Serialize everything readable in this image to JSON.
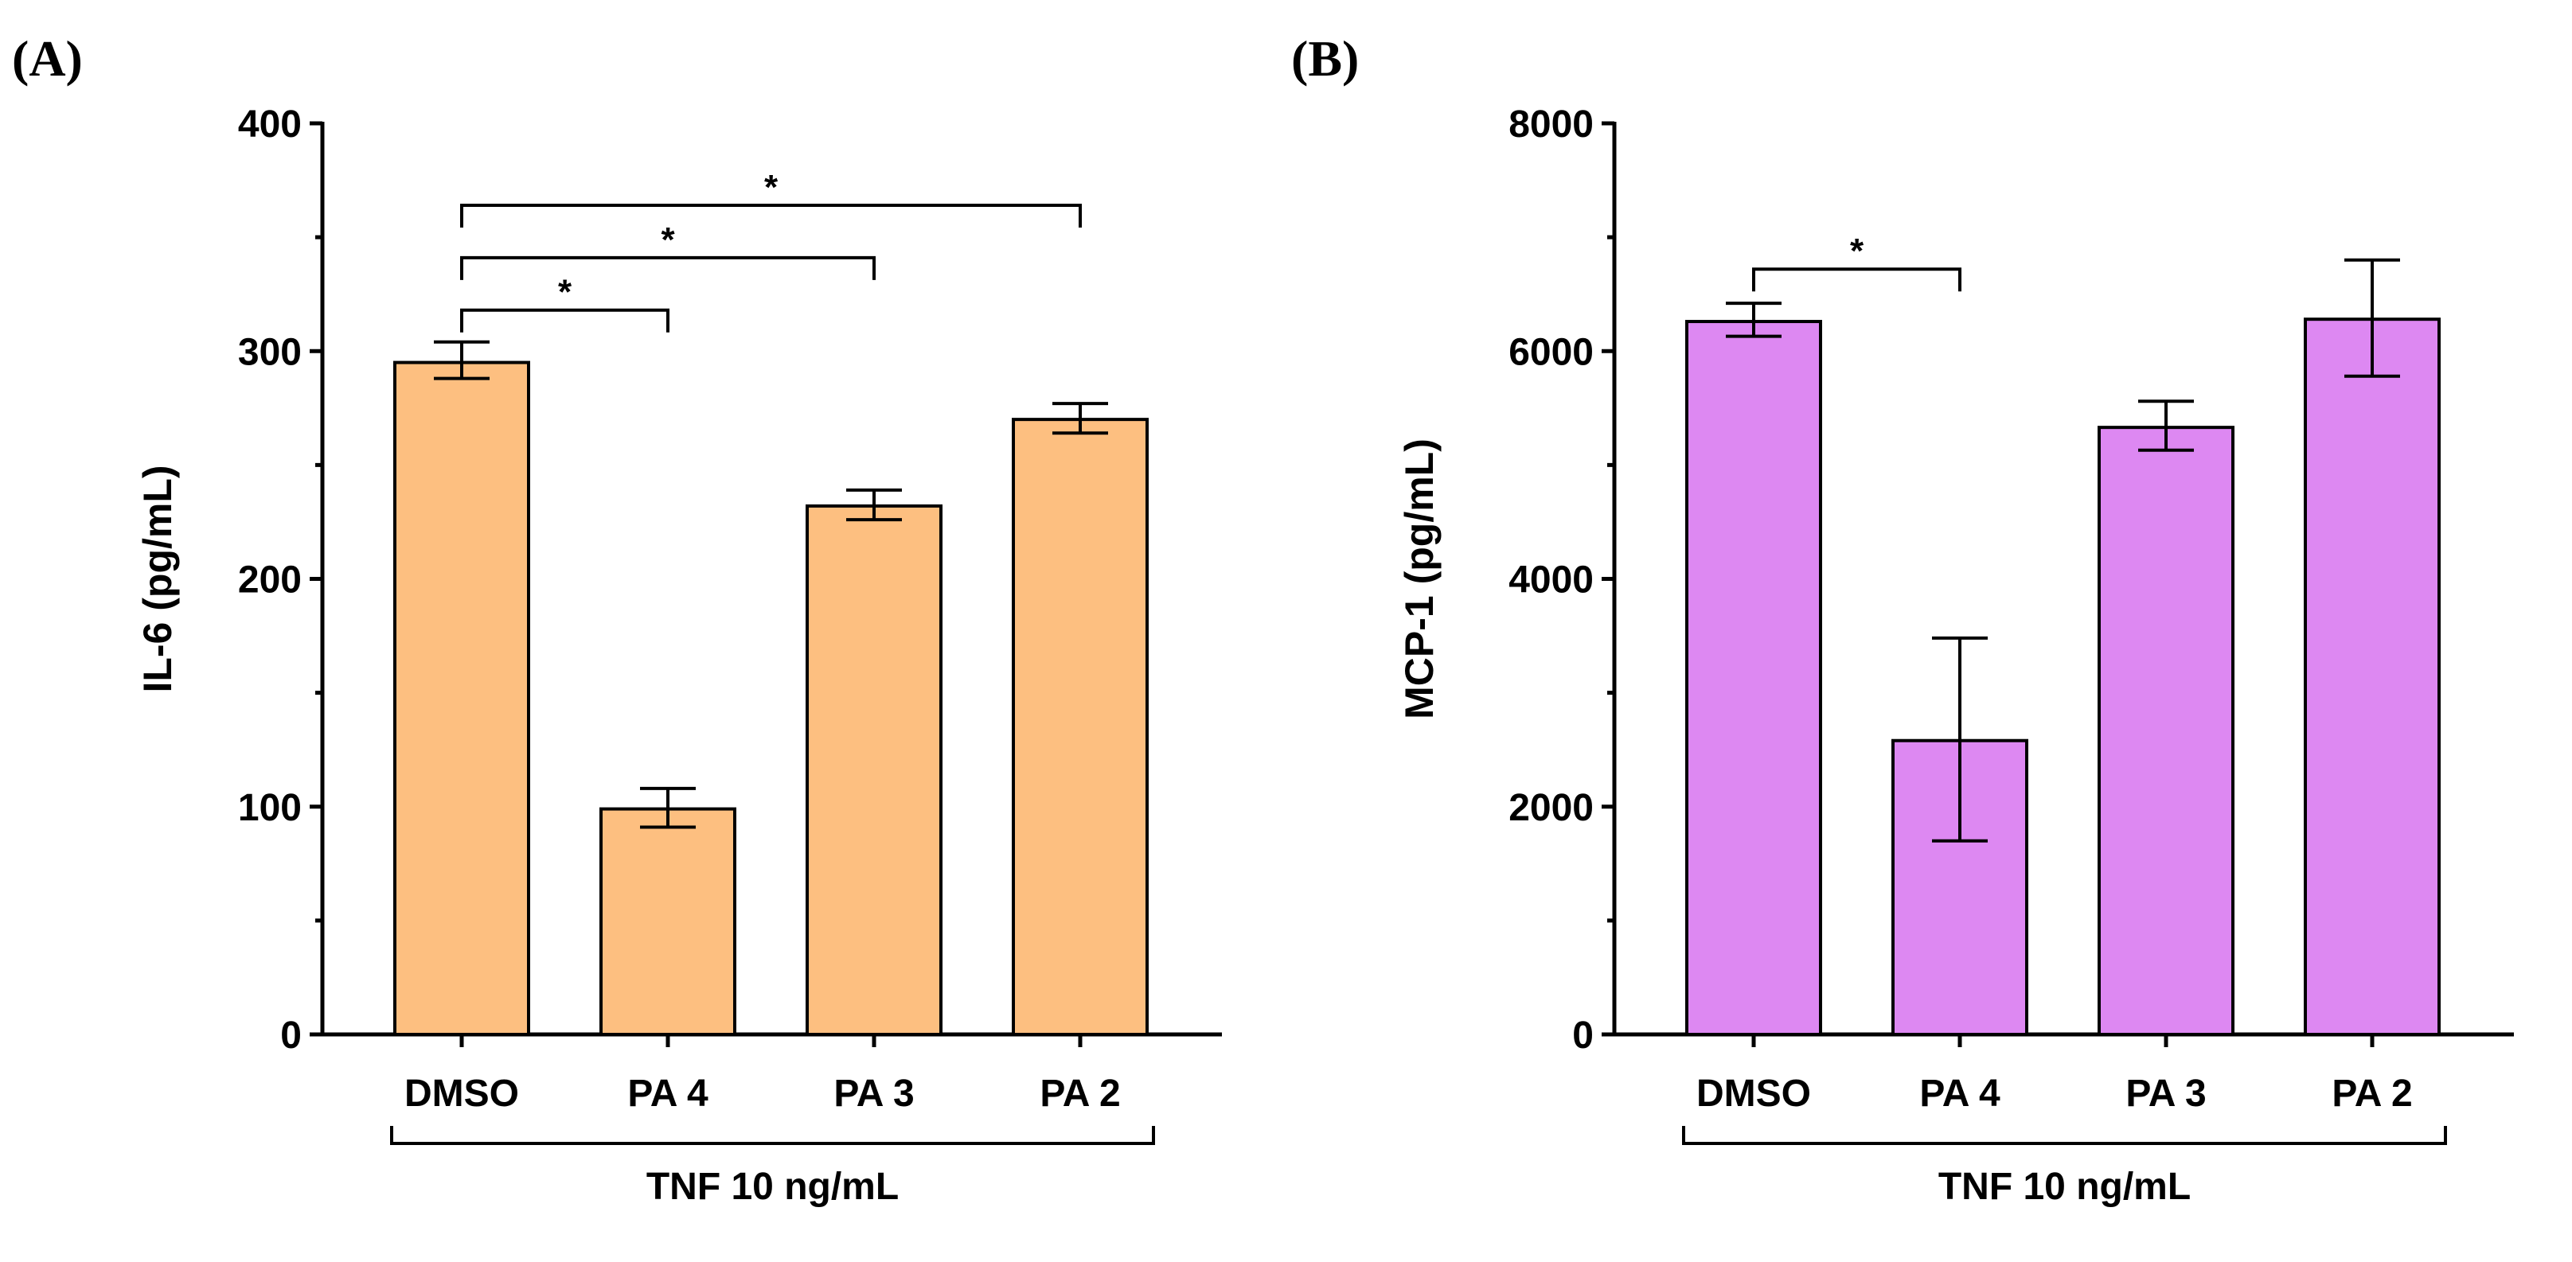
{
  "chart_data": [
    {
      "type": "bar",
      "panel_label": "(A)",
      "title": "",
      "ylabel": "IL-6 (pg/mL)",
      "xlabel": "TNF 10 ng/mL",
      "categories": [
        "DMSO",
        "PA 4",
        "PA 3",
        "PA 2"
      ],
      "values": [
        295,
        99,
        232,
        270
      ],
      "error_low": [
        288,
        91,
        226,
        264
      ],
      "error_high": [
        304,
        108,
        239,
        277
      ],
      "ylim": [
        0,
        400
      ],
      "yticks": [
        "0",
        "100",
        "200",
        "300",
        "400"
      ],
      "ytick_values": [
        0,
        100,
        200,
        300,
        400
      ],
      "color": "#FDBF80",
      "grid": false,
      "significance": [
        {
          "from": 0,
          "to": 1,
          "level": 318,
          "label": "*"
        },
        {
          "from": 0,
          "to": 2,
          "level": 341,
          "label": "*"
        },
        {
          "from": 0,
          "to": 3,
          "level": 364,
          "label": "*"
        }
      ]
    },
    {
      "type": "bar",
      "panel_label": "(B)",
      "title": "",
      "ylabel": "MCP-1 (pg/mL)",
      "xlabel": "TNF 10 ng/mL",
      "categories": [
        "DMSO",
        "PA 4",
        "PA 3",
        "PA 2"
      ],
      "values": [
        6260,
        2580,
        5330,
        6280
      ],
      "error_low": [
        6130,
        1700,
        5130,
        5780
      ],
      "error_high": [
        6420,
        3480,
        5560,
        6800
      ],
      "ylim": [
        0,
        8000
      ],
      "yticks": [
        "0",
        "2000",
        "4000",
        "6000",
        "8000"
      ],
      "ytick_values": [
        0,
        2000,
        4000,
        6000,
        8000
      ],
      "color": "#DD88F2",
      "grid": false,
      "significance": [
        {
          "from": 0,
          "to": 1,
          "level": 6720,
          "label": "*"
        }
      ]
    }
  ]
}
